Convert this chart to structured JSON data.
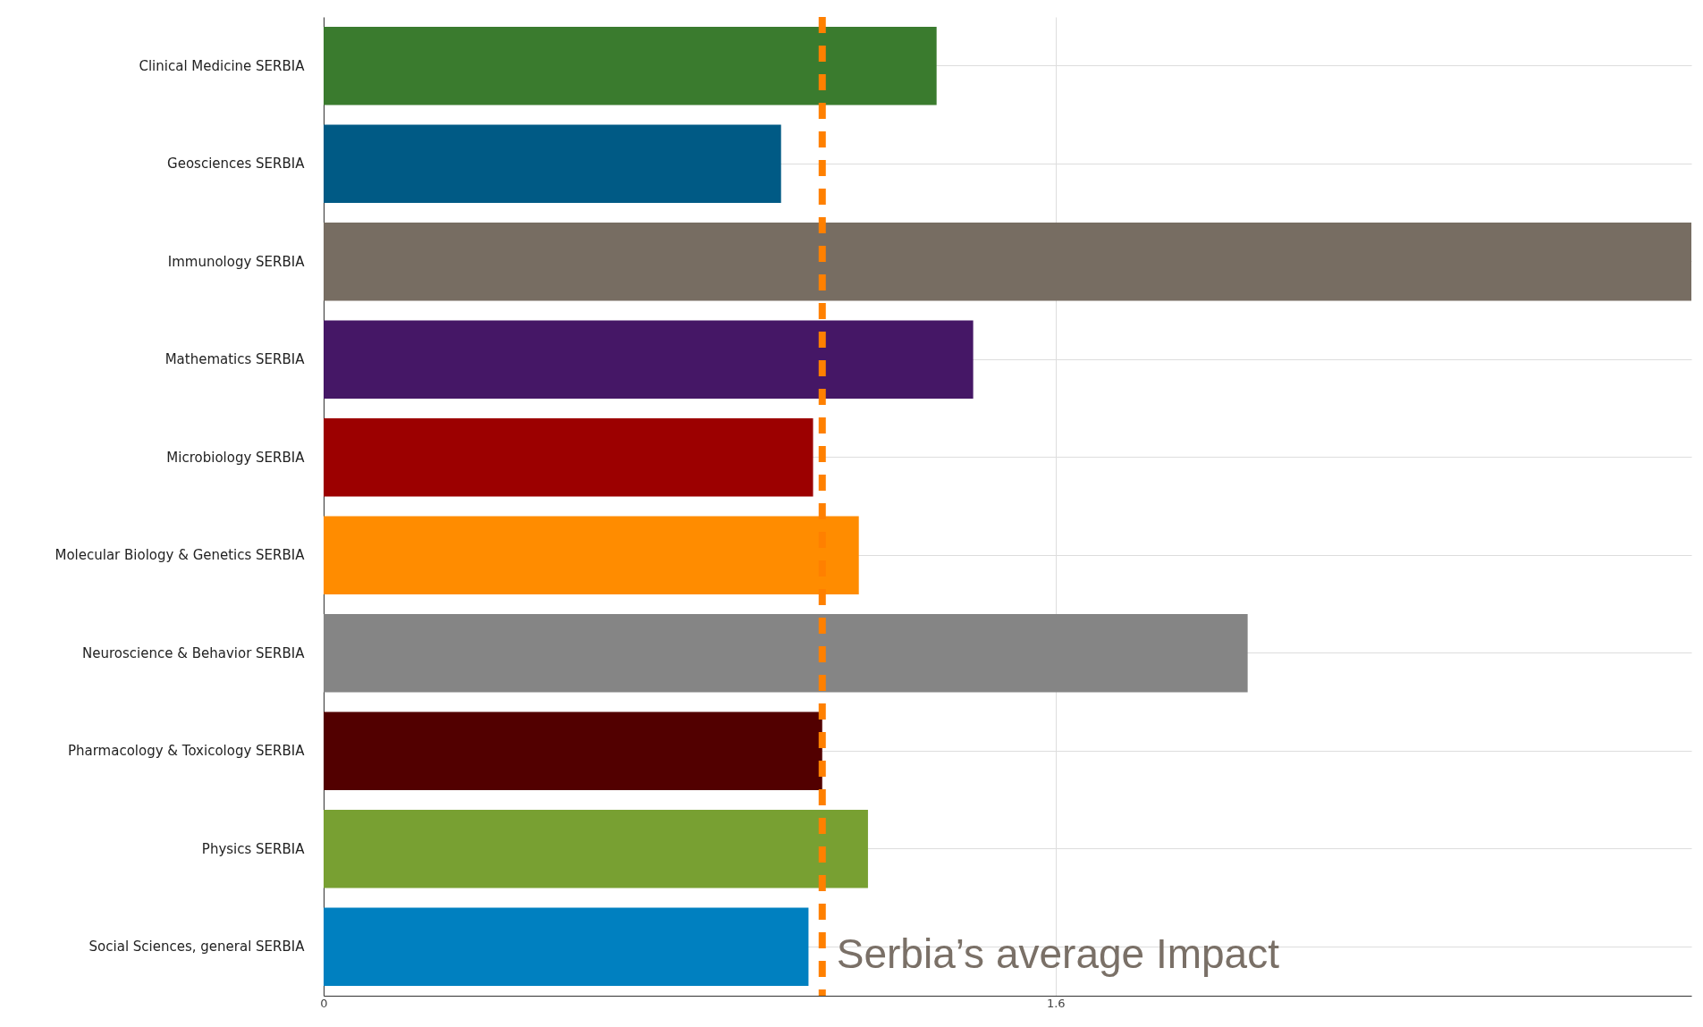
{
  "chart_data": {
    "type": "bar",
    "orientation": "horizontal",
    "categories": [
      "Clinical Medicine  SERBIA",
      "Geosciences  SERBIA",
      "Immunology  SERBIA",
      "Mathematics  SERBIA",
      "Microbiology  SERBIA",
      "Molecular Biology & Genetics SERBIA",
      "Neuroscience & Behavior  SERBIA",
      "Pharmacology & Toxicology  SERBIA",
      "Physics  SERBIA",
      "Social Sciences, general  SERBIA"
    ],
    "values": [
      1.34,
      1.0,
      2.99,
      1.42,
      1.07,
      1.17,
      2.02,
      1.09,
      1.19,
      1.06
    ],
    "colors": [
      "#3a7b2e",
      "#005a85",
      "#776d62",
      "#451766",
      "#9c0000",
      "#ff8c00",
      "#858585",
      "#520000",
      "#78a032",
      "#0080c0"
    ],
    "xlim": [
      0,
      2.99
    ],
    "xticks": [
      0,
      1.6
    ],
    "grid": true,
    "ref_lines": [
      {
        "axis": "x",
        "value": 1.09,
        "label": "Serbia’s average Impact",
        "color": "#ff8000",
        "line_style": "dashed"
      }
    ]
  }
}
